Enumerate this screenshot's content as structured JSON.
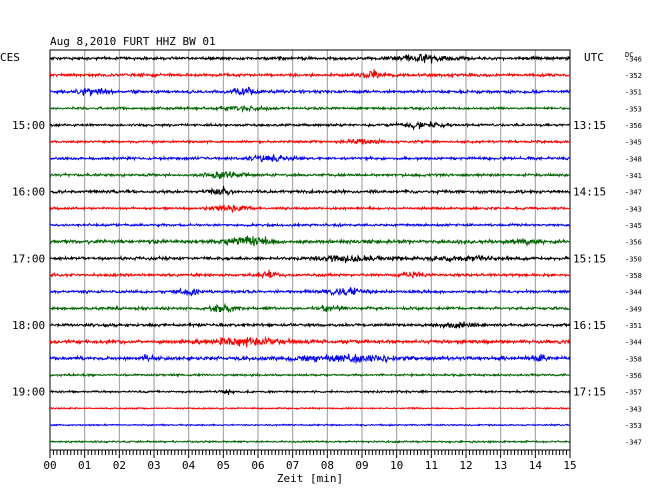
{
  "header": {
    "title": "Aug 8,2010   FURT HHZ BW 01",
    "left_zone": "CES",
    "right_zone": "UTC",
    "dc_label": "DC"
  },
  "chart_data": {
    "type": "line",
    "title": "Aug 8,2010   FURT HHZ BW 01",
    "xlabel": "Zeit [min]",
    "ylabel": "",
    "xlim": [
      0,
      15
    ],
    "x_ticks": [
      "00",
      "01",
      "02",
      "03",
      "04",
      "05",
      "06",
      "07",
      "08",
      "09",
      "10",
      "11",
      "12",
      "13",
      "14",
      "15"
    ],
    "grid": true,
    "left_time_labels": [
      {
        "row": 4,
        "label": "15:00"
      },
      {
        "row": 8,
        "label": "16:00"
      },
      {
        "row": 12,
        "label": "17:00"
      },
      {
        "row": 16,
        "label": "18:00"
      },
      {
        "row": 20,
        "label": "19:00"
      }
    ],
    "right_time_labels": [
      {
        "row": 4,
        "label": "13:15"
      },
      {
        "row": 8,
        "label": "14:15"
      },
      {
        "row": 12,
        "label": "15:15"
      },
      {
        "row": 16,
        "label": "16:15"
      },
      {
        "row": 20,
        "label": "17:15"
      }
    ],
    "colors": [
      "#000000",
      "#ff0000",
      "#0000ff",
      "#006400"
    ],
    "traces": [
      {
        "dc": "-346",
        "amp": 1.0,
        "events": [
          {
            "x": 10.8,
            "w": 0.8,
            "a": 1.6
          }
        ]
      },
      {
        "dc": "-352",
        "amp": 1.0,
        "events": [
          {
            "x": 9.2,
            "w": 0.3,
            "a": 3.0
          }
        ]
      },
      {
        "dc": "-351",
        "amp": 1.0,
        "events": [
          {
            "x": 1.2,
            "w": 0.4,
            "a": 2.0
          },
          {
            "x": 5.6,
            "w": 0.4,
            "a": 2.0
          }
        ]
      },
      {
        "dc": "-353",
        "amp": 0.8,
        "events": [
          {
            "x": 5.5,
            "w": 0.5,
            "a": 1.2
          }
        ]
      },
      {
        "dc": "-356",
        "amp": 0.8,
        "events": [
          {
            "x": 10.7,
            "w": 0.6,
            "a": 1.6
          }
        ]
      },
      {
        "dc": "-345",
        "amp": 0.8,
        "events": [
          {
            "x": 9.0,
            "w": 0.5,
            "a": 1.2
          }
        ]
      },
      {
        "dc": "-348",
        "amp": 0.9,
        "events": [
          {
            "x": 6.3,
            "w": 0.5,
            "a": 2.0
          }
        ]
      },
      {
        "dc": "-341",
        "amp": 0.9,
        "events": [
          {
            "x": 5.0,
            "w": 0.5,
            "a": 1.8
          }
        ]
      },
      {
        "dc": "-347",
        "amp": 1.0,
        "events": [
          {
            "x": 4.9,
            "w": 0.3,
            "a": 2.0
          }
        ]
      },
      {
        "dc": "-343",
        "amp": 0.8,
        "events": [
          {
            "x": 5.2,
            "w": 0.4,
            "a": 2.0
          }
        ]
      },
      {
        "dc": "-345",
        "amp": 0.8,
        "events": []
      },
      {
        "dc": "-356",
        "amp": 1.2,
        "events": [
          {
            "x": 5.7,
            "w": 0.7,
            "a": 2.5
          },
          {
            "x": 13.6,
            "w": 0.4,
            "a": 1.4
          }
        ]
      },
      {
        "dc": "-350",
        "amp": 1.0,
        "events": [
          {
            "x": 8.6,
            "w": 1.0,
            "a": 1.4
          },
          {
            "x": 12.0,
            "w": 0.8,
            "a": 1.5
          }
        ]
      },
      {
        "dc": "-358",
        "amp": 0.9,
        "events": [
          {
            "x": 6.3,
            "w": 0.3,
            "a": 1.8
          },
          {
            "x": 10.5,
            "w": 0.3,
            "a": 1.6
          }
        ]
      },
      {
        "dc": "-344",
        "amp": 0.9,
        "events": [
          {
            "x": 4.0,
            "w": 0.3,
            "a": 1.8
          },
          {
            "x": 8.5,
            "w": 0.5,
            "a": 2.0
          }
        ]
      },
      {
        "dc": "-349",
        "amp": 0.9,
        "events": [
          {
            "x": 5.0,
            "w": 0.5,
            "a": 1.4
          },
          {
            "x": 8.1,
            "w": 0.3,
            "a": 1.5
          }
        ]
      },
      {
        "dc": "-351",
        "amp": 1.0,
        "events": [
          {
            "x": 11.7,
            "w": 0.4,
            "a": 1.6
          }
        ]
      },
      {
        "dc": "-344",
        "amp": 1.2,
        "events": [
          {
            "x": 5.5,
            "w": 1.3,
            "a": 1.8
          }
        ]
      },
      {
        "dc": "-358",
        "amp": 1.2,
        "events": [
          {
            "x": 8.5,
            "w": 1.4,
            "a": 1.6
          },
          {
            "x": 14.1,
            "w": 0.2,
            "a": 2.0
          },
          {
            "x": 2.8,
            "w": 0.2,
            "a": 1.6
          }
        ]
      },
      {
        "dc": "-356",
        "amp": 0.7,
        "events": []
      },
      {
        "dc": "-357",
        "amp": 0.7,
        "events": [
          {
            "x": 5.1,
            "w": 0.2,
            "a": 1.4
          }
        ]
      },
      {
        "dc": "-343",
        "amp": 0.5,
        "events": []
      },
      {
        "dc": "-353",
        "amp": 0.5,
        "events": []
      },
      {
        "dc": "-347",
        "amp": 0.6,
        "events": []
      }
    ]
  }
}
